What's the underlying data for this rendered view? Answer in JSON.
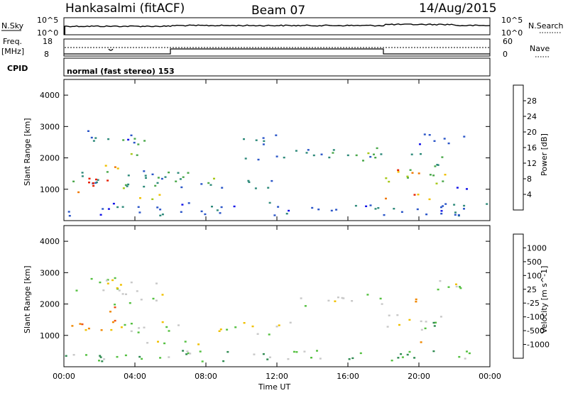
{
  "header": {
    "station": "Hankasalmi (fitACF)",
    "beam": "Beam 07",
    "date": "14/Aug/2015"
  },
  "panels": {
    "nsky": {
      "left_label": "N.Sky",
      "right_label": "N.Search",
      "left_ticks": [
        "10^5",
        "10^0"
      ],
      "right_ticks": [
        "10^5",
        "10^0"
      ]
    },
    "freq": {
      "left_label_1": "Freq.",
      "left_label_2": "[MHz]",
      "right_label": "Nave",
      "left_ticks": [
        "18",
        "8"
      ],
      "right_ticks": [
        "60",
        "0"
      ]
    },
    "cpid": {
      "label": "CPID",
      "mode_text": "normal (fast stereo) 153"
    }
  },
  "chart_data": [
    {
      "type": "heatmap",
      "title": "",
      "xlabel": "",
      "ylabel": "Slant Range [km]",
      "ylim": [
        0,
        4500
      ],
      "yticks": [
        "1000",
        "2000",
        "3000",
        "4000"
      ],
      "xticks": [
        "00:00",
        "04:00",
        "08:00",
        "12:00",
        "16:00",
        "20:00",
        "00:00"
      ],
      "colorbar": {
        "label": "Power [dB]",
        "ticks": [
          "4",
          "8",
          "12",
          "16",
          "20",
          "24",
          "28"
        ],
        "colors": [
          "#1010e8",
          "#2a55c8",
          "#2e8a7a",
          "#4aa84a",
          "#a6c818",
          "#f0c000",
          "#f07800",
          "#e82000"
        ]
      },
      "regions": [
        {
          "t0": 0.2,
          "t1": 4.0,
          "r0": 2500,
          "r1": 2900,
          "level": 1
        },
        {
          "t0": 2.8,
          "t1": 4.5,
          "r0": 2100,
          "r1": 2700,
          "level": 3
        },
        {
          "t0": 0.2,
          "t1": 7.0,
          "r0": 1150,
          "r1": 1650,
          "level": 2
        },
        {
          "t0": 0.4,
          "t1": 1.8,
          "r0": 900,
          "r1": 1550,
          "level": 7
        },
        {
          "t0": 1.6,
          "t1": 2.6,
          "r0": 1100,
          "r1": 1450,
          "level": 6
        },
        {
          "t0": 2.2,
          "t1": 3.0,
          "r0": 1300,
          "r1": 1900,
          "level": 5
        },
        {
          "t0": 4.0,
          "t1": 6.0,
          "r0": 700,
          "r1": 1000,
          "level": 4
        },
        {
          "t0": 3.0,
          "t1": 8.5,
          "r0": 1050,
          "r1": 1450,
          "level": 3
        },
        {
          "t0": 6.5,
          "t1": 12.0,
          "r0": 1050,
          "r1": 1350,
          "level": 2
        },
        {
          "t0": 10.0,
          "t1": 13.0,
          "r0": 1950,
          "r1": 2200,
          "level": 1
        },
        {
          "t0": 10.0,
          "t1": 12.5,
          "r0": 2400,
          "r1": 2800,
          "level": 1
        },
        {
          "t0": 13.0,
          "t1": 18.0,
          "r0": 1950,
          "r1": 2350,
          "level": 2
        },
        {
          "t0": 15.0,
          "t1": 18.0,
          "r0": 1850,
          "r1": 2200,
          "level": 3
        },
        {
          "t0": 18.0,
          "t1": 21.5,
          "r0": 1200,
          "r1": 1700,
          "level": 4
        },
        {
          "t0": 18.0,
          "t1": 20.5,
          "r0": 1400,
          "r1": 1700,
          "level": 6
        },
        {
          "t0": 18.0,
          "t1": 21.0,
          "r0": 650,
          "r1": 900,
          "level": 6
        },
        {
          "t0": 19.0,
          "t1": 21.5,
          "r0": 1750,
          "r1": 2200,
          "level": 2
        },
        {
          "t0": 19.5,
          "t1": 22.5,
          "r0": 2400,
          "r1": 2800,
          "level": 1
        },
        {
          "t0": 0.0,
          "t1": 24.0,
          "r0": 180,
          "r1": 600,
          "level": 1
        },
        {
          "t0": 22.0,
          "t1": 24.0,
          "r0": 900,
          "r1": 1100,
          "level": 0
        }
      ]
    },
    {
      "type": "heatmap",
      "title": "",
      "xlabel": "Time UT",
      "ylabel": "Slant Range [km]",
      "ylim": [
        0,
        4500
      ],
      "yticks": [
        "1000",
        "2000",
        "3000",
        "4000"
      ],
      "xticks": [
        "00:00",
        "04:00",
        "08:00",
        "12:00",
        "16:00",
        "20:00",
        "00:00"
      ],
      "colorbar": {
        "label": "Velocity [m s^-1]",
        "ticks": [
          "1000",
          "500",
          "100",
          "25",
          "-25",
          "-100",
          "-500",
          "-1000"
        ],
        "colors": [
          "#2040c0",
          "#2e6aa8",
          "#2e8a50",
          "#54c040",
          "#c8c8c8",
          "#f0c000",
          "#f08800",
          "#f05010",
          "#e81010"
        ]
      },
      "regions": [
        {
          "t0": 0.2,
          "t1": 4.0,
          "r0": 2450,
          "r1": 2900,
          "level": 4
        },
        {
          "t0": 2.8,
          "t1": 6.0,
          "r0": 2000,
          "r1": 2800,
          "level": 4
        },
        {
          "t0": 0.3,
          "t1": 3.0,
          "r0": 1100,
          "r1": 1600,
          "level": 6
        },
        {
          "t0": 2.2,
          "t1": 3.0,
          "r0": 1300,
          "r1": 1950,
          "level": 6
        },
        {
          "t0": 3.0,
          "t1": 13.0,
          "r0": 1050,
          "r1": 1450,
          "level": 4
        },
        {
          "t0": 4.0,
          "t1": 6.0,
          "r0": 650,
          "r1": 950,
          "level": 4
        },
        {
          "t0": 6.0,
          "t1": 8.0,
          "r0": 700,
          "r1": 900,
          "level": 4
        },
        {
          "t0": 13.0,
          "t1": 18.0,
          "r0": 1950,
          "r1": 2350,
          "level": 4
        },
        {
          "t0": 18.0,
          "t1": 21.5,
          "r0": 1200,
          "r1": 1700,
          "level": 4
        },
        {
          "t0": 20.0,
          "t1": 21.5,
          "r0": 1100,
          "r1": 1500,
          "level": 2
        },
        {
          "t0": 19.0,
          "t1": 20.0,
          "r0": 2000,
          "r1": 2400,
          "level": 6
        },
        {
          "t0": 20.0,
          "t1": 20.6,
          "r0": 700,
          "r1": 1000,
          "level": 5
        },
        {
          "t0": 19.5,
          "t1": 22.5,
          "r0": 2400,
          "r1": 2800,
          "level": 4
        },
        {
          "t0": 0.0,
          "t1": 24.0,
          "r0": 180,
          "r1": 550,
          "level": 3
        }
      ]
    }
  ]
}
